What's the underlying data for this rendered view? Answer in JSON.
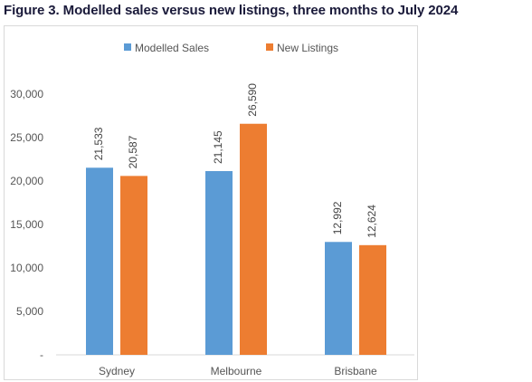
{
  "title": "Figure 3. Modelled sales versus new listings, three months to July 2024",
  "chart_data": {
    "type": "bar",
    "categories": [
      "Sydney",
      "Melbourne",
      "Brisbane"
    ],
    "series": [
      {
        "name": "Modelled Sales",
        "color": "#5b9bd5",
        "values": [
          21533,
          21145,
          12992
        ],
        "labels": [
          "21,533",
          "21,145",
          "12,992"
        ]
      },
      {
        "name": "New Listings",
        "color": "#ed7d31",
        "values": [
          20587,
          26590,
          12624
        ],
        "labels": [
          "20,587",
          "26,590",
          "12,624"
        ]
      }
    ],
    "yticks": [
      {
        "value": 0,
        "label": "-"
      },
      {
        "value": 5000,
        "label": "5,000"
      },
      {
        "value": 10000,
        "label": "10,000"
      },
      {
        "value": 15000,
        "label": "15,000"
      },
      {
        "value": 20000,
        "label": "20,000"
      },
      {
        "value": 25000,
        "label": "25,000"
      },
      {
        "value": 30000,
        "label": "30,000"
      }
    ],
    "ylim": [
      0,
      30000
    ],
    "legend": "top-center",
    "grid": false
  }
}
